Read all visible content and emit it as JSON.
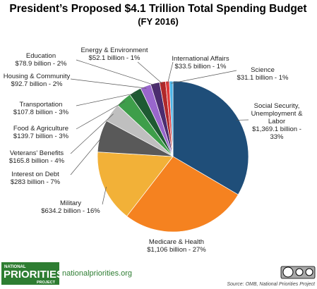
{
  "chart_data": {
    "type": "pie",
    "title": "President’s Proposed $4.1 Trillion Total Spending Budget",
    "subtitle": "(FY 2016)",
    "categories": [
      "Social Security, Unemployment & Labor",
      "Medicare & Health",
      "Military",
      "Interest on Debt",
      "Veterans' Benefits",
      "Food & Agriculture",
      "Transportation",
      "Housing & Community",
      "Education",
      "Energy & Environment",
      "International Affairs",
      "Science"
    ],
    "values": [
      1369.1,
      1106,
      634.2,
      283,
      165.8,
      139.7,
      107.8,
      92.7,
      78.9,
      52.1,
      33.5,
      31.1
    ],
    "value_labels": [
      "$1,369.1 billion - 33%",
      "$1,106 billion - 27%",
      "$634.2 billion - 16%",
      "$283 billion - 7%",
      "$165.8 billion - 4%",
      "$139.7 billion - 3%",
      "$107.8 billion - 3%",
      "$92.7 billion - 2%",
      "$78.9 billion - 2%",
      "$52.1 billion - 1%",
      "$33.5 billion - 1%",
      "$31.1 billion - 1%"
    ],
    "colors": [
      "#1f4e79",
      "#f58220",
      "#f2b138",
      "#595959",
      "#bfbfbf",
      "#3e9e4a",
      "#1e5a32",
      "#9966cc",
      "#4b2c6e",
      "#b0282a",
      "#e03a3a",
      "#4bb3e6"
    ]
  },
  "footer": {
    "logo": [
      "NATIONAL",
      "PRIORITIES",
      "PROJECT"
    ],
    "website": "nationalpriorities.org",
    "source": "Source: OMB, National Priorities Project"
  }
}
